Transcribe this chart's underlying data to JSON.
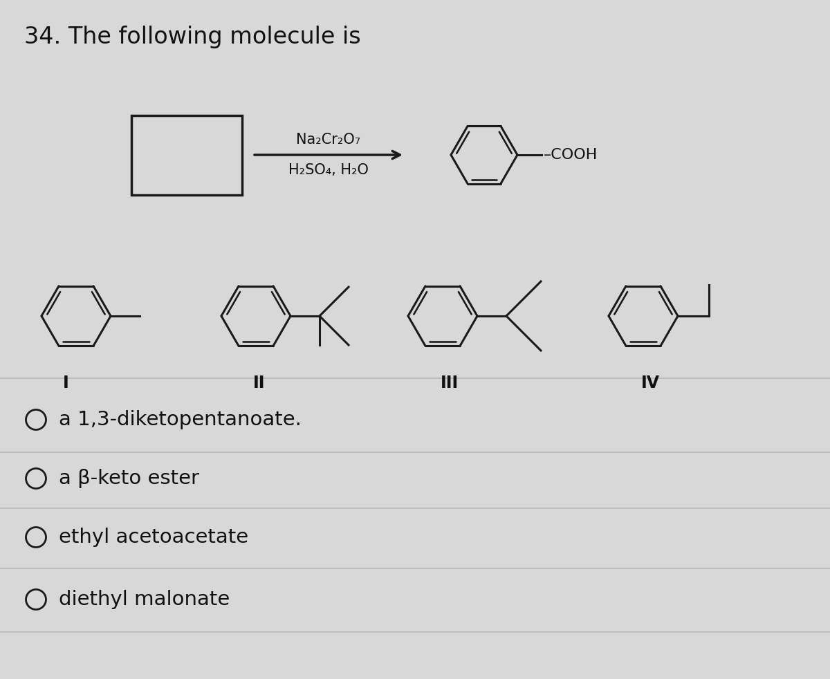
{
  "background_color": "#d8d8d8",
  "title_text": "34. The following molecule is",
  "title_fontsize": 24,
  "reagent_line1": "Na₂Cr₂O₇",
  "reagent_line2": "H₂SO₄, H₂O",
  "product_label": "–COOH",
  "roman_labels": [
    "I",
    "II",
    "III",
    "IV"
  ],
  "answer_choices": [
    "a 1,3-diketopentanoate.",
    "a β-keto ester",
    "ethyl acetoacetate",
    "diethyl malonate"
  ],
  "answer_fontsize": 21,
  "divider_color": "#bbbbbb",
  "mol_color": "#1a1a1a",
  "text_color": "#111111"
}
